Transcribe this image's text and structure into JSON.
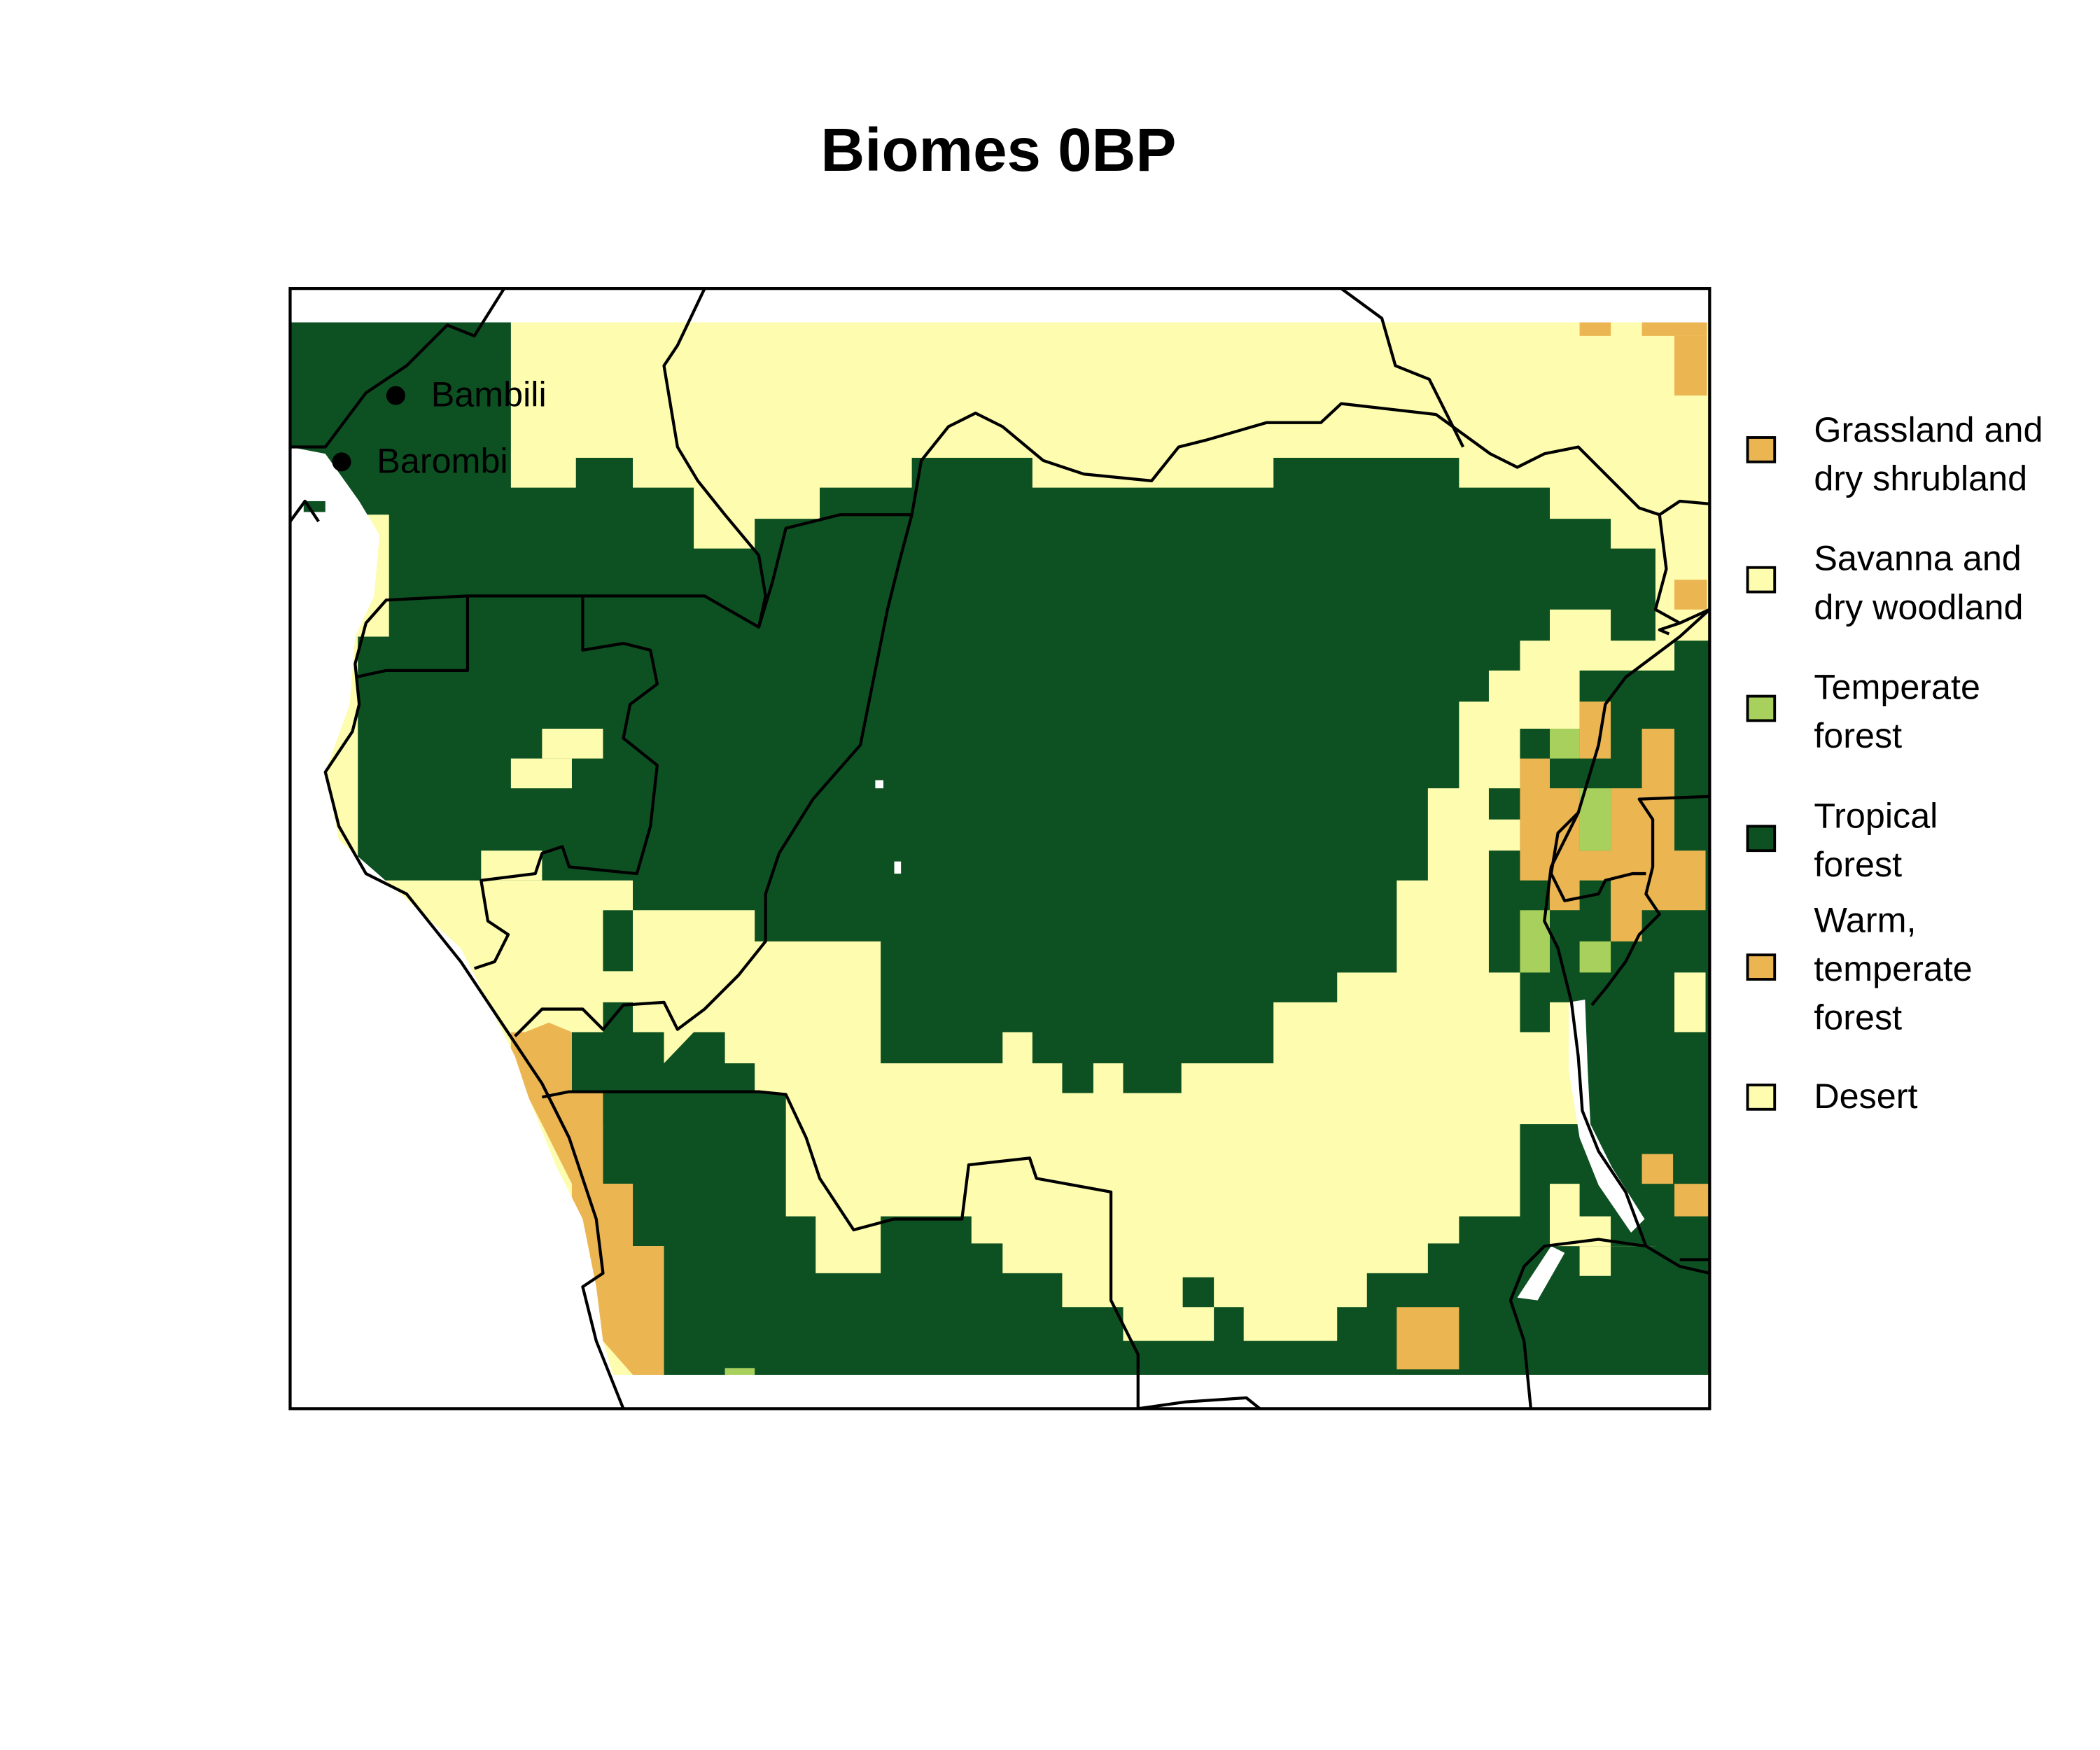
{
  "title": "Biomes 0BP",
  "sites": [
    {
      "name": "Bambili"
    },
    {
      "name": "Barombi"
    }
  ],
  "legend": [
    {
      "lines": [
        "Grassland and",
        "dry shrubland"
      ],
      "color": "#ebb552"
    },
    {
      "lines": [
        "Savanna and",
        "dry woodland"
      ],
      "color": "#fdfcaf"
    },
    {
      "lines": [
        "Temperate",
        "forest"
      ],
      "color": "#a8d05c"
    },
    {
      "lines": [
        "Tropical",
        "forest"
      ],
      "color": "#0d5122"
    },
    {
      "lines": [
        "Warm,",
        "temperate",
        "forest"
      ],
      "color": "#ebb552"
    },
    {
      "lines": [
        "Desert"
      ],
      "color": "#fdfcaf"
    }
  ],
  "colors": {
    "tropical_forest": "#0d5122",
    "savanna": "#fdfcaf",
    "grassland": "#ebb552",
    "temperate_forest": "#a8d05c",
    "border": "#000000"
  }
}
